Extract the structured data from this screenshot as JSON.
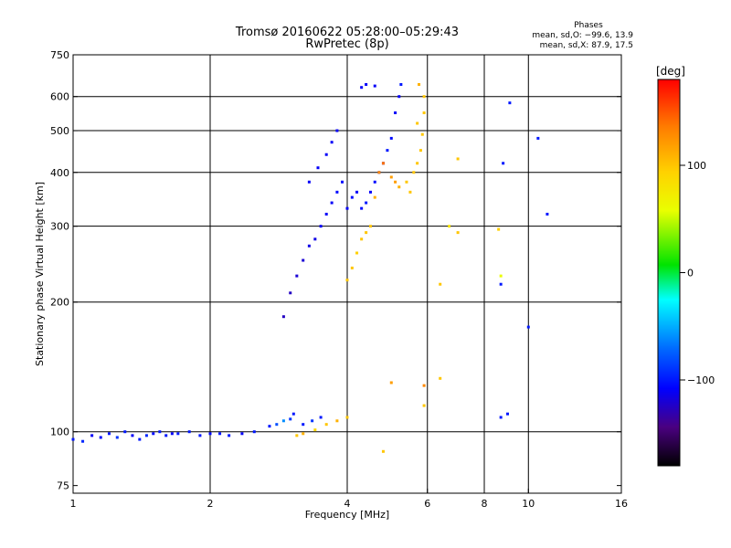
{
  "chart_data": {
    "type": "scatter",
    "title": "Tromsø 20160622 05:28:00–05:29:43",
    "subtitle": "RwPretec (8p)",
    "xlabel": "Frequency [MHz]",
    "ylabel": "Stationary phase Virtual Height [km]",
    "x_scale": "log",
    "y_scale": "log",
    "xlim": [
      1,
      16
    ],
    "ylim": [
      72,
      750
    ],
    "x_ticks": [
      1,
      2,
      4,
      6,
      8,
      10,
      16
    ],
    "x_tick_labels": [
      "1",
      "2",
      "4",
      "6",
      "8",
      "10",
      "16"
    ],
    "y_ticks": [
      75,
      100,
      200,
      300,
      400,
      500,
      600,
      750
    ],
    "y_tick_labels": [
      "75",
      "100",
      "200",
      "300",
      "400",
      "500",
      "600",
      "750"
    ],
    "x_grid": [
      2,
      4,
      6,
      8,
      10
    ],
    "y_grid": [
      100,
      200,
      300,
      400,
      500,
      600
    ],
    "grid": true,
    "annotation": {
      "heading": "Phases",
      "line1": "mean, sd,O: −99.6, 13.9",
      "line2": "mean, sd,X:  87.9, 17.5"
    },
    "colorbar": {
      "label": "[deg]",
      "range": [
        -180,
        180
      ],
      "ticks": [
        100,
        0,
        -100
      ],
      "tick_labels": [
        "100",
        "0",
        "−100"
      ]
    },
    "series": [
      {
        "name": "O",
        "points": [
          [
            1.0,
            96,
            -100
          ],
          [
            1.05,
            95,
            -95
          ],
          [
            1.1,
            98,
            -110
          ],
          [
            1.15,
            97,
            -105
          ],
          [
            1.2,
            99,
            -100
          ],
          [
            1.25,
            97,
            -90
          ],
          [
            1.3,
            100,
            -100
          ],
          [
            1.35,
            98,
            -110
          ],
          [
            1.4,
            96,
            -100
          ],
          [
            1.45,
            98,
            -95
          ],
          [
            1.5,
            99,
            -105
          ],
          [
            1.55,
            100,
            -100
          ],
          [
            1.6,
            98,
            -100
          ],
          [
            1.65,
            99,
            -110
          ],
          [
            1.7,
            99,
            -100
          ],
          [
            1.8,
            100,
            -100
          ],
          [
            1.9,
            98,
            -100
          ],
          [
            2.0,
            99,
            -105
          ],
          [
            2.1,
            99,
            -100
          ],
          [
            2.2,
            98,
            -100
          ],
          [
            2.35,
            99,
            -110
          ],
          [
            2.5,
            100,
            -100
          ],
          [
            2.7,
            103,
            -100
          ],
          [
            2.8,
            104,
            -80
          ],
          [
            2.9,
            106,
            -60
          ],
          [
            3.0,
            107,
            -90
          ],
          [
            3.05,
            110,
            -100
          ],
          [
            3.2,
            104,
            -100
          ],
          [
            3.35,
            106,
            -90
          ],
          [
            3.5,
            108,
            -100
          ],
          [
            2.9,
            185,
            -125
          ],
          [
            3.0,
            210,
            -125
          ],
          [
            3.1,
            230,
            -120
          ],
          [
            3.2,
            250,
            -120
          ],
          [
            3.3,
            270,
            -115
          ],
          [
            3.4,
            280,
            -115
          ],
          [
            3.5,
            300,
            -110
          ],
          [
            3.6,
            320,
            -110
          ],
          [
            3.7,
            340,
            -110
          ],
          [
            3.8,
            360,
            -105
          ],
          [
            3.9,
            380,
            -105
          ],
          [
            3.3,
            380,
            -110
          ],
          [
            3.45,
            410,
            -110
          ],
          [
            3.6,
            440,
            -110
          ],
          [
            3.7,
            470,
            -110
          ],
          [
            3.8,
            500,
            -110
          ],
          [
            4.0,
            330,
            -110
          ],
          [
            4.1,
            350,
            -105
          ],
          [
            4.2,
            360,
            -110
          ],
          [
            4.3,
            330,
            -105
          ],
          [
            4.4,
            340,
            -100
          ],
          [
            4.5,
            360,
            -110
          ],
          [
            4.6,
            380,
            -105
          ],
          [
            4.7,
            400,
            -100
          ],
          [
            4.8,
            420,
            -100
          ],
          [
            4.9,
            450,
            -100
          ],
          [
            5.0,
            480,
            -105
          ],
          [
            5.1,
            550,
            -110
          ],
          [
            5.2,
            600,
            -110
          ],
          [
            5.25,
            640,
            -100
          ],
          [
            4.4,
            640,
            -110
          ],
          [
            4.6,
            635,
            -110
          ],
          [
            4.3,
            630,
            -110
          ],
          [
            9.1,
            580,
            -100
          ],
          [
            10.5,
            480,
            -100
          ],
          [
            11.0,
            320,
            -100
          ],
          [
            8.8,
            420,
            -100
          ],
          [
            8.7,
            220,
            -100
          ],
          [
            8.7,
            108,
            -100
          ],
          [
            9.0,
            110,
            -100
          ],
          [
            10.0,
            175,
            -100
          ]
        ]
      },
      {
        "name": "X",
        "points": [
          [
            3.1,
            98,
            100
          ],
          [
            3.2,
            99,
            110
          ],
          [
            3.4,
            101,
            90
          ],
          [
            3.6,
            104,
            100
          ],
          [
            3.8,
            106,
            110
          ],
          [
            4.0,
            108,
            100
          ],
          [
            4.0,
            225,
            100
          ],
          [
            4.1,
            240,
            100
          ],
          [
            4.2,
            260,
            95
          ],
          [
            4.3,
            280,
            100
          ],
          [
            4.4,
            290,
            100
          ],
          [
            4.5,
            300,
            100
          ],
          [
            4.6,
            350,
            110
          ],
          [
            4.7,
            400,
            130
          ],
          [
            4.8,
            420,
            140
          ],
          [
            5.0,
            390,
            120
          ],
          [
            5.1,
            380,
            120
          ],
          [
            5.2,
            370,
            110
          ],
          [
            5.4,
            380,
            100
          ],
          [
            5.5,
            360,
            100
          ],
          [
            5.6,
            400,
            100
          ],
          [
            5.7,
            420,
            100
          ],
          [
            5.8,
            450,
            100
          ],
          [
            5.85,
            490,
            100
          ],
          [
            5.9,
            550,
            100
          ],
          [
            5.9,
            600,
            100
          ],
          [
            5.7,
            520,
            100
          ],
          [
            5.75,
            640,
            110
          ],
          [
            7.0,
            430,
            100
          ],
          [
            7.0,
            290,
            100
          ],
          [
            6.7,
            300,
            80
          ],
          [
            8.6,
            295,
            95
          ],
          [
            8.7,
            230,
            60
          ],
          [
            6.4,
            220,
            100
          ],
          [
            6.4,
            133,
            100
          ],
          [
            5.0,
            130,
            120
          ],
          [
            4.8,
            90,
            100
          ],
          [
            5.9,
            128,
            130
          ],
          [
            5.9,
            115,
            100
          ]
        ]
      }
    ]
  }
}
